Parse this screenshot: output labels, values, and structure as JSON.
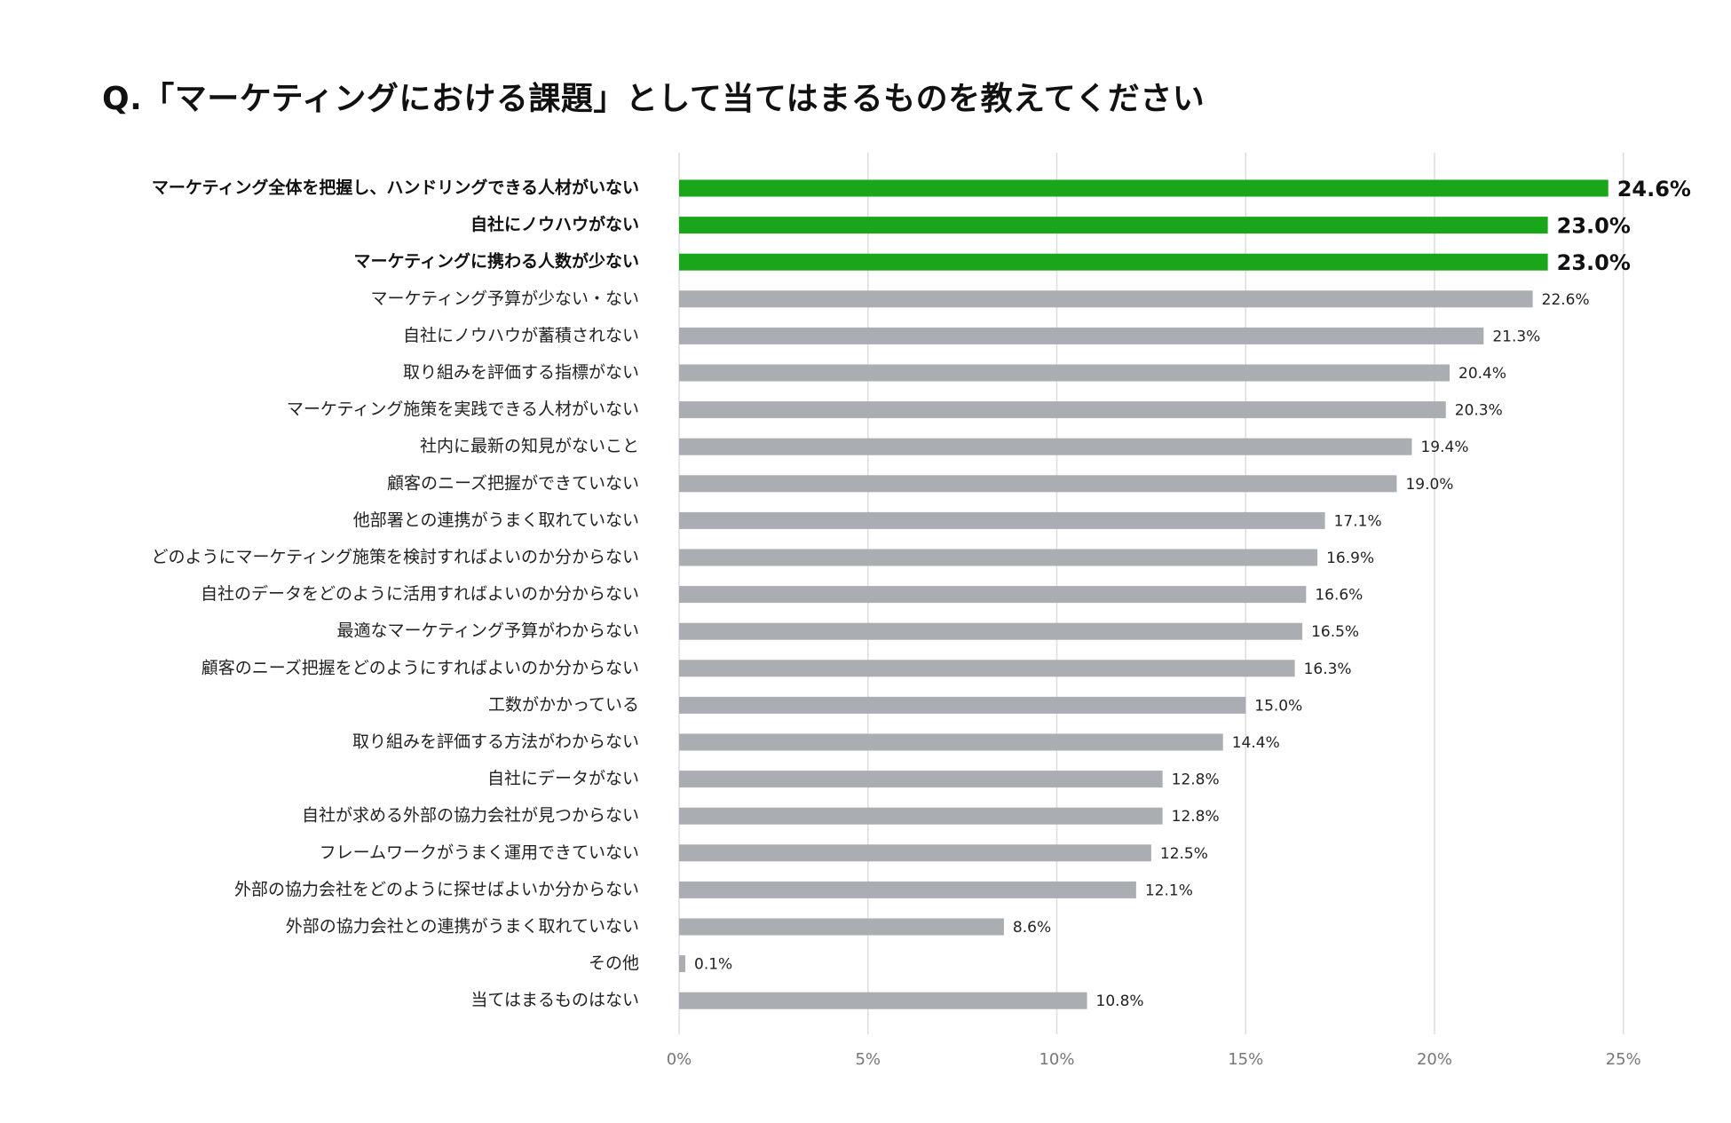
{
  "chart_data": {
    "type": "bar",
    "orientation": "horizontal",
    "title": "Q.「マーケティングにおける課題」として当てはまるものを教えてください",
    "xlabel": "",
    "ylabel": "",
    "xlim": [
      0,
      25
    ],
    "grid": true,
    "ticks": [
      0,
      5,
      10,
      15,
      20,
      25
    ],
    "tick_labels": [
      "0%",
      "5%",
      "10%",
      "15%",
      "20%",
      "25%"
    ],
    "colors": {
      "highlight": "#1aa61a",
      "default": "#aaadb1"
    },
    "categories": [
      "マーケティング全体を把握し、ハンドリングできる人材がいない",
      "自社にノウハウがない",
      "マーケティングに携わる人数が少ない",
      "マーケティング予算が少ない・ない",
      "自社にノウハウが蓄積されない",
      "取り組みを評価する指標がない",
      "マーケティング施策を実践できる人材がいない",
      "社内に最新の知見がないこと",
      "顧客のニーズ把握ができていない",
      "他部署との連携がうまく取れていない",
      "どのようにマーケティング施策を検討すればよいのか分からない",
      "自社のデータをどのように活用すればよいのか分からない",
      "最適なマーケティング予算がわからない",
      "顧客のニーズ把握をどのようにすればよいのか分からない",
      "工数がかかっている",
      "取り組みを評価する方法がわからない",
      "自社にデータがない",
      "自社が求める外部の協力会社が見つからない",
      "フレームワークがうまく運用できていない",
      "外部の協力会社をどのように探せばよいか分からない",
      "外部の協力会社との連携がうまく取れていない",
      "その他",
      "当てはまるものはない"
    ],
    "values": [
      24.6,
      23.0,
      23.0,
      22.6,
      21.3,
      20.4,
      20.3,
      19.4,
      19.0,
      17.1,
      16.9,
      16.6,
      16.5,
      16.3,
      15.0,
      14.4,
      12.8,
      12.8,
      12.5,
      12.1,
      8.6,
      0.1,
      10.8
    ],
    "value_labels": [
      "24.6%",
      "23.0%",
      "23.0%",
      "22.6%",
      "21.3%",
      "20.4%",
      "20.3%",
      "19.4%",
      "19.0%",
      "17.1%",
      "16.9%",
      "16.6%",
      "16.5%",
      "16.3%",
      "15.0%",
      "14.4%",
      "12.8%",
      "12.8%",
      "12.5%",
      "12.1%",
      "8.6%",
      "0.1%",
      "10.8%"
    ],
    "highlighted": [
      true,
      true,
      true,
      false,
      false,
      false,
      false,
      false,
      false,
      false,
      false,
      false,
      false,
      false,
      false,
      false,
      false,
      false,
      false,
      false,
      false,
      false,
      false
    ]
  }
}
